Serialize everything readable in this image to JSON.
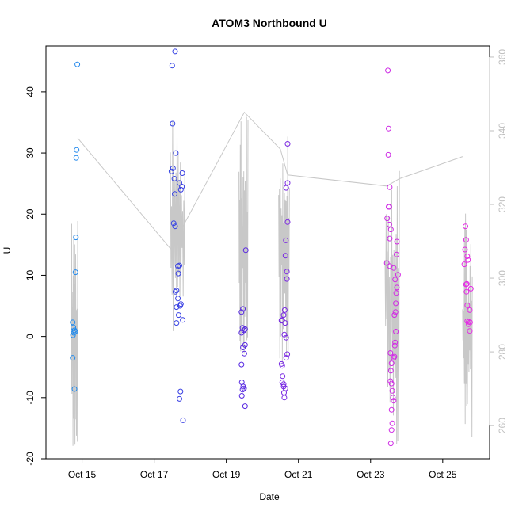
{
  "chart_data": {
    "type": "scatter",
    "title": "ATOM3 Northbound U",
    "xlabel": "Date",
    "ylabel": "U",
    "xlim": [
      "2023-10-14",
      "2023-10-26.3"
    ],
    "ylim": [
      -20,
      47.5
    ],
    "y2lim": [
      251,
      363
    ],
    "x_tick_labels": [
      "Oct 15",
      "Oct 17",
      "Oct 19",
      "Oct 21",
      "Oct 23",
      "Oct 25"
    ],
    "y_ticks": [
      -20,
      -10,
      0,
      10,
      20,
      30,
      40
    ],
    "y2_ticks": [
      260,
      280,
      300,
      320,
      340,
      360
    ],
    "grid": false,
    "colors": {
      "axis": "#000000",
      "right_axis": "#bfbfbf",
      "line": "#c8c8c8",
      "gradient_start": "#1ea0f0",
      "gradient_mid": "#3c28e0",
      "gradient_end": "#e628e6"
    },
    "series": [
      {
        "marker": "open-circle",
        "points": [
          [
            "2023-10-14.87",
            44.5
          ],
          [
            "2023-10-14.85",
            30.5
          ],
          [
            "2023-10-14.84",
            29.2
          ],
          [
            "2023-10-14.83",
            16.2
          ],
          [
            "2023-10-14.82",
            10.5
          ],
          [
            "2023-10-14.74",
            2.3
          ],
          [
            "2023-10-14.76",
            1.5
          ],
          [
            "2023-10-14.79",
            1.0
          ],
          [
            "2023-10-14.81",
            0.8
          ],
          [
            "2023-10-14.77",
            0.6
          ],
          [
            "2023-10-14.75",
            0.2
          ],
          [
            "2023-10-14.74",
            -3.5
          ],
          [
            "2023-10-14.79",
            -8.6
          ],
          [
            "2023-10-17.58",
            46.6
          ],
          [
            "2023-10-17.50",
            44.3
          ],
          [
            "2023-10-17.51",
            34.8
          ],
          [
            "2023-10-17.60",
            30.0
          ],
          [
            "2023-10-17.52",
            27.5
          ],
          [
            "2023-10-17.48",
            27.0
          ],
          [
            "2023-10-17.56",
            25.8
          ],
          [
            "2023-10-17.78",
            26.7
          ],
          [
            "2023-10-17.70",
            25.1
          ],
          [
            "2023-10-17.77",
            24.5
          ],
          [
            "2023-10-17.74",
            24.0
          ],
          [
            "2023-10-17.57",
            23.3
          ],
          [
            "2023-10-17.54",
            18.5
          ],
          [
            "2023-10-17.58",
            18.0
          ],
          [
            "2023-10-17.66",
            11.5
          ],
          [
            "2023-10-17.70",
            11.6
          ],
          [
            "2023-10-17.67",
            10.3
          ],
          [
            "2023-10-17.62",
            7.5
          ],
          [
            "2023-10-17.59",
            7.3
          ],
          [
            "2023-10-17.66",
            6.2
          ],
          [
            "2023-10-17.74",
            5.3
          ],
          [
            "2023-10-17.72",
            5.0
          ],
          [
            "2023-10-17.62",
            4.8
          ],
          [
            "2023-10-17.68",
            3.5
          ],
          [
            "2023-10-17.79",
            2.7
          ],
          [
            "2023-10-17.62",
            2.2
          ],
          [
            "2023-10-17.73",
            -9.0
          ],
          [
            "2023-10-17.70",
            -10.2
          ],
          [
            "2023-10-17.80",
            -13.7
          ],
          [
            "2023-10-19.54",
            14.1
          ],
          [
            "2023-10-19.46",
            4.5
          ],
          [
            "2023-10-19.42",
            4.0
          ],
          [
            "2023-10-19.45",
            1.4
          ],
          [
            "2023-10-19.52",
            1.2
          ],
          [
            "2023-10-19.49",
            1.0
          ],
          [
            "2023-10-19.42",
            0.6
          ],
          [
            "2023-10-19.52",
            -1.4
          ],
          [
            "2023-10-19.46",
            -1.8
          ],
          [
            "2023-10-19.50",
            -2.8
          ],
          [
            "2023-10-19.42",
            -4.6
          ],
          [
            "2023-10-19.43",
            -7.5
          ],
          [
            "2023-10-19.47",
            -8.2
          ],
          [
            "2023-10-19.49",
            -8.5
          ],
          [
            "2023-10-19.45",
            -8.7
          ],
          [
            "2023-10-19.43",
            -9.7
          ],
          [
            "2023-10-19.52",
            -11.4
          ],
          [
            "2023-10-20.70",
            31.5
          ],
          [
            "2023-10-20.70",
            25.1
          ],
          [
            "2023-10-20.66",
            24.3
          ],
          [
            "2023-10-20.70",
            18.7
          ],
          [
            "2023-10-20.65",
            15.7
          ],
          [
            "2023-10-20.64",
            13.2
          ],
          [
            "2023-10-20.68",
            10.6
          ],
          [
            "2023-10-20.68",
            9.4
          ],
          [
            "2023-10-20.62",
            4.3
          ],
          [
            "2023-10-20.59",
            3.5
          ],
          [
            "2023-10-20.55",
            2.7
          ],
          [
            "2023-10-20.53",
            2.6
          ],
          [
            "2023-10-20.63",
            2.2
          ],
          [
            "2023-10-20.61",
            0.3
          ],
          [
            "2023-10-20.66",
            -0.2
          ],
          [
            "2023-10-20.69",
            -2.9
          ],
          [
            "2023-10-20.66",
            -3.5
          ],
          [
            "2023-10-20.53",
            -4.5
          ],
          [
            "2023-10-20.55",
            -4.8
          ],
          [
            "2023-10-20.56",
            -6.5
          ],
          [
            "2023-10-20.55",
            -7.5
          ],
          [
            "2023-10-20.59",
            -7.8
          ],
          [
            "2023-10-20.59",
            -8.2
          ],
          [
            "2023-10-20.64",
            -8.5
          ],
          [
            "2023-10-20.60",
            -9.2
          ],
          [
            "2023-10-20.61",
            -10.0
          ],
          [
            "2023-10-23.48",
            43.5
          ],
          [
            "2023-10-23.50",
            34.0
          ],
          [
            "2023-10-23.49",
            29.7
          ],
          [
            "2023-10-23.53",
            24.4
          ],
          [
            "2023-10-23.50",
            21.2
          ],
          [
            "2023-10-23.52",
            21.2
          ],
          [
            "2023-10-23.46",
            19.3
          ],
          [
            "2023-10-23.52",
            18.3
          ],
          [
            "2023-10-23.56",
            17.5
          ],
          [
            "2023-10-23.53",
            16.0
          ],
          [
            "2023-10-23.73",
            15.5
          ],
          [
            "2023-10-23.72",
            13.4
          ],
          [
            "2023-10-23.45",
            12.0
          ],
          [
            "2023-10-23.53",
            11.5
          ],
          [
            "2023-10-23.64",
            11.2
          ],
          [
            "2023-10-23.76",
            10.1
          ],
          [
            "2023-10-23.68",
            9.3
          ],
          [
            "2023-10-23.73",
            8.0
          ],
          [
            "2023-10-23.71",
            7.1
          ],
          [
            "2023-10-23.70",
            5.4
          ],
          [
            "2023-10-23.69",
            4.0
          ],
          [
            "2023-10-23.66",
            3.5
          ],
          [
            "2023-10-23.70",
            0.8
          ],
          [
            "2023-10-23.68",
            -1.0
          ],
          [
            "2023-10-23.67",
            -1.5
          ],
          [
            "2023-10-23.55",
            -2.7
          ],
          [
            "2023-10-23.66",
            -3.3
          ],
          [
            "2023-10-23.64",
            -3.5
          ],
          [
            "2023-10-23.58",
            -4.4
          ],
          [
            "2023-10-23.56",
            -5.6
          ],
          [
            "2023-10-23.55",
            -7.3
          ],
          [
            "2023-10-23.58",
            -7.7
          ],
          [
            "2023-10-23.60",
            -8.9
          ],
          [
            "2023-10-23.62",
            -10.0
          ],
          [
            "2023-10-23.64",
            -10.5
          ],
          [
            "2023-10-23.58",
            -12.0
          ],
          [
            "2023-10-23.60",
            -14.2
          ],
          [
            "2023-10-23.58",
            -15.3
          ],
          [
            "2023-10-23.56",
            -17.5
          ],
          [
            "2023-10-25.63",
            18.0
          ],
          [
            "2023-10-25.65",
            15.8
          ],
          [
            "2023-10-25.62",
            14.2
          ],
          [
            "2023-10-25.68",
            13.1
          ],
          [
            "2023-10-25.70",
            12.5
          ],
          [
            "2023-10-25.60",
            11.8
          ],
          [
            "2023-10-25.67",
            8.6
          ],
          [
            "2023-10-25.65",
            8.5
          ],
          [
            "2023-10-25.66",
            7.3
          ],
          [
            "2023-10-25.78",
            7.8
          ],
          [
            "2023-10-25.68",
            5.1
          ],
          [
            "2023-10-25.75",
            4.3
          ],
          [
            "2023-10-25.68",
            2.5
          ],
          [
            "2023-10-25.72",
            2.4
          ],
          [
            "2023-10-25.76",
            2.3
          ],
          [
            "2023-10-25.72",
            2.0
          ],
          [
            "2023-10-25.75",
            0.9
          ]
        ]
      },
      {
        "name": "",
        "axis": "right",
        "style": "line",
        "bursts": [
          {
            "x_start": "2023-10-14.70",
            "x_end": "2023-10-14.88",
            "min": 253,
            "max": 318
          },
          {
            "x_start": "2023-10-17.45",
            "x_end": "2023-10-17.85",
            "min": 285,
            "max": 345
          },
          {
            "x_start": "2023-10-19.35",
            "x_end": "2023-10-19.60",
            "min": 275,
            "max": 346
          },
          {
            "x_start": "2023-10-20.45",
            "x_end": "2023-10-20.75",
            "min": 275,
            "max": 343
          },
          {
            "x_start": "2023-10-23.40",
            "x_end": "2023-10-23.80",
            "min": 255,
            "max": 333
          },
          {
            "x_start": "2023-10-25.55",
            "x_end": "2023-10-25.82",
            "min": 255,
            "max": 318
          }
        ],
        "links": [
          [
            "2023-10-14.88",
            338
          ],
          [
            "2023-10-17.45",
            308
          ],
          [
            "2023-10-17.85",
            315
          ],
          [
            "2023-10-19.50",
            345
          ],
          [
            "2023-10-20.50",
            335
          ],
          [
            "2023-10-20.70",
            328
          ],
          [
            "2023-10-23.45",
            325
          ],
          [
            "2023-10-23.80",
            327
          ],
          [
            "2023-10-25.55",
            333
          ]
        ]
      }
    ]
  }
}
